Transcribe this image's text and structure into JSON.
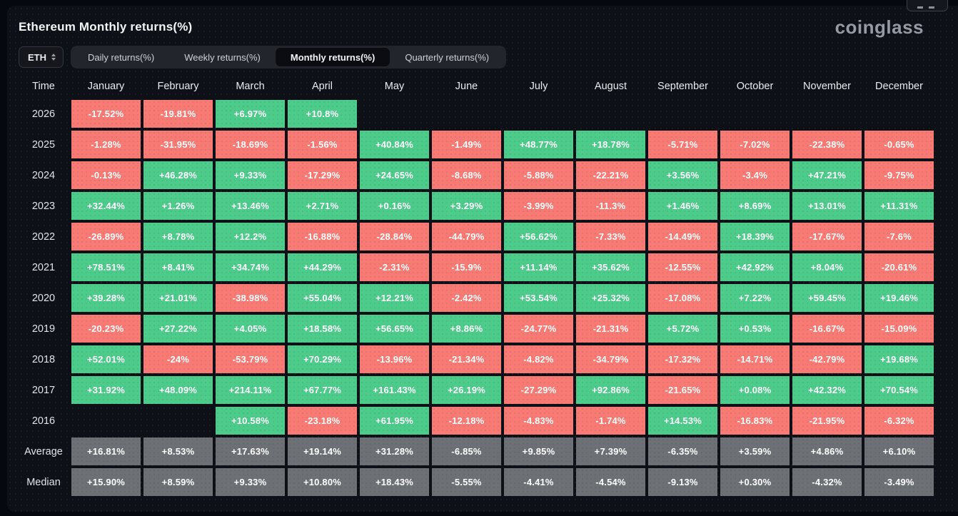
{
  "page": {
    "title": "Ethereum Monthly returns(%)",
    "logo": "coinglass"
  },
  "controls": {
    "symbol": "ETH",
    "tabs": [
      {
        "label": "Daily returns(%)",
        "active": false
      },
      {
        "label": "Weekly returns(%)",
        "active": false
      },
      {
        "label": "Monthly returns(%)",
        "active": true
      },
      {
        "label": "Quarterly returns(%)",
        "active": false
      }
    ]
  },
  "colors": {
    "positive": "#4dcb8b",
    "negative": "#f87a74",
    "neutral": "#6d7175"
  },
  "table": {
    "time_header": "Time",
    "months": [
      "January",
      "February",
      "March",
      "April",
      "May",
      "June",
      "July",
      "August",
      "September",
      "October",
      "November",
      "December"
    ],
    "rows": [
      {
        "label": "2026",
        "kind": "year",
        "values": [
          "-17.52%",
          "-19.81%",
          "+6.97%",
          "+10.8%",
          "",
          "",
          "",
          "",
          "",
          "",
          "",
          ""
        ]
      },
      {
        "label": "2025",
        "kind": "year",
        "values": [
          "-1.28%",
          "-31.95%",
          "-18.69%",
          "-1.56%",
          "+40.84%",
          "-1.49%",
          "+48.77%",
          "+18.78%",
          "-5.71%",
          "-7.02%",
          "-22.38%",
          "-0.65%"
        ]
      },
      {
        "label": "2024",
        "kind": "year",
        "values": [
          "-0.13%",
          "+46.28%",
          "+9.33%",
          "-17.29%",
          "+24.65%",
          "-8.68%",
          "-5.88%",
          "-22.21%",
          "+3.56%",
          "-3.4%",
          "+47.21%",
          "-9.75%"
        ]
      },
      {
        "label": "2023",
        "kind": "year",
        "values": [
          "+32.44%",
          "+1.26%",
          "+13.46%",
          "+2.71%",
          "+0.16%",
          "+3.29%",
          "-3.99%",
          "-11.3%",
          "+1.46%",
          "+8.69%",
          "+13.01%",
          "+11.31%"
        ]
      },
      {
        "label": "2022",
        "kind": "year",
        "values": [
          "-26.89%",
          "+8.78%",
          "+12.2%",
          "-16.88%",
          "-28.84%",
          "-44.79%",
          "+56.62%",
          "-7.33%",
          "-14.49%",
          "+18.39%",
          "-17.67%",
          "-7.6%"
        ]
      },
      {
        "label": "2021",
        "kind": "year",
        "values": [
          "+78.51%",
          "+8.41%",
          "+34.74%",
          "+44.29%",
          "-2.31%",
          "-15.9%",
          "+11.14%",
          "+35.62%",
          "-12.55%",
          "+42.92%",
          "+8.04%",
          "-20.61%"
        ]
      },
      {
        "label": "2020",
        "kind": "year",
        "values": [
          "+39.28%",
          "+21.01%",
          "-38.98%",
          "+55.04%",
          "+12.21%",
          "-2.42%",
          "+53.54%",
          "+25.32%",
          "-17.08%",
          "+7.22%",
          "+59.45%",
          "+19.46%"
        ]
      },
      {
        "label": "2019",
        "kind": "year",
        "values": [
          "-20.23%",
          "+27.22%",
          "+4.05%",
          "+18.58%",
          "+56.65%",
          "+8.86%",
          "-24.77%",
          "-21.31%",
          "+5.72%",
          "+0.53%",
          "-16.67%",
          "-15.09%"
        ]
      },
      {
        "label": "2018",
        "kind": "year",
        "values": [
          "+52.01%",
          "-24%",
          "-53.79%",
          "+70.29%",
          "-13.96%",
          "-21.34%",
          "-4.82%",
          "-34.79%",
          "-17.32%",
          "-14.71%",
          "-42.79%",
          "+19.68%"
        ]
      },
      {
        "label": "2017",
        "kind": "year",
        "values": [
          "+31.92%",
          "+48.09%",
          "+214.11%",
          "+67.77%",
          "+161.43%",
          "+26.19%",
          "-27.29%",
          "+92.86%",
          "-21.65%",
          "+0.08%",
          "+42.32%",
          "+70.54%"
        ]
      },
      {
        "label": "2016",
        "kind": "year",
        "values": [
          "",
          "",
          "+10.58%",
          "-23.18%",
          "+61.95%",
          "-12.18%",
          "-4.83%",
          "-1.74%",
          "+14.53%",
          "-16.83%",
          "-21.95%",
          "-6.32%"
        ]
      },
      {
        "label": "Average",
        "kind": "stat",
        "values": [
          "+16.81%",
          "+8.53%",
          "+17.63%",
          "+19.14%",
          "+31.28%",
          "-6.85%",
          "+9.85%",
          "+7.39%",
          "-6.35%",
          "+3.59%",
          "+4.86%",
          "+6.10%"
        ]
      },
      {
        "label": "Median",
        "kind": "stat",
        "values": [
          "+15.90%",
          "+8.59%",
          "+9.33%",
          "+10.80%",
          "+18.43%",
          "-5.55%",
          "-4.41%",
          "-4.54%",
          "-9.13%",
          "+0.30%",
          "-4.32%",
          "-3.49%"
        ]
      }
    ]
  }
}
